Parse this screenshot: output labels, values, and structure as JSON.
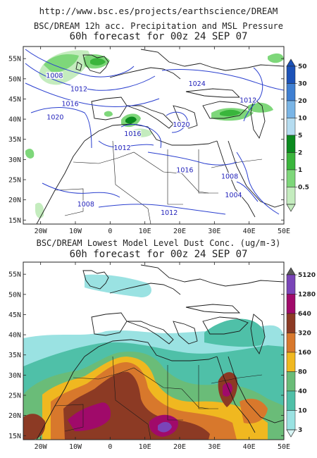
{
  "header": {
    "url": "http://www.bsc.es/projects/earthscience/DREAM",
    "title1_line1": "BSC/DREAM 12h acc. Precipitation and MSL Pressure",
    "title1_line2": "60h forecast for 00z 24 SEP 07",
    "title2_line1": "BSC/DREAM Lowest Model Level Dust Conc. (ug/m-3)",
    "title2_line2": "60h forecast for 00z 24 SEP 07"
  },
  "axes": {
    "lat_labels": [
      "55N",
      "50N",
      "45N",
      "40N",
      "35N",
      "30N",
      "25N",
      "20N",
      "15N"
    ],
    "lon_labels": [
      "20W",
      "10W",
      "0",
      "10E",
      "20E",
      "30E",
      "40E",
      "50E"
    ]
  },
  "precip_map": {
    "isobar_labels": [
      {
        "text": "1008",
        "lon": -16,
        "lat": 50.5
      },
      {
        "text": "1012",
        "lon": -9,
        "lat": 47.2
      },
      {
        "text": "1016",
        "lon": -11.5,
        "lat": 43.5
      },
      {
        "text": "1020",
        "lon": -15.8,
        "lat": 40.2
      },
      {
        "text": "1024",
        "lon": 25,
        "lat": 48.5
      },
      {
        "text": "1012",
        "lon": 39.7,
        "lat": 44.4
      },
      {
        "text": "1020",
        "lon": 20.5,
        "lat": 38.4
      },
      {
        "text": "1016",
        "lon": 6.5,
        "lat": 36.1
      },
      {
        "text": "1012",
        "lon": 3.5,
        "lat": 32.6
      },
      {
        "text": "1016",
        "lon": 21.5,
        "lat": 27.1
      },
      {
        "text": "1008",
        "lon": 34.4,
        "lat": 25.5
      },
      {
        "text": "1004",
        "lon": 35.5,
        "lat": 20.9
      },
      {
        "text": "1008",
        "lon": -7,
        "lat": 18.6
      },
      {
        "text": "1012",
        "lon": 17,
        "lat": 16.5
      }
    ],
    "colorbar": {
      "labels": [
        "50",
        "30",
        "20",
        "10",
        "5",
        "2",
        "1",
        "0.5"
      ],
      "colors": [
        "#1c52b8",
        "#3f7fd2",
        "#7ab5e6",
        "#b5dcf0",
        "#0a8a1e",
        "#3ab53c",
        "#7ed77a",
        "#c4ecbe"
      ]
    }
  },
  "dust_map": {
    "colorbar": {
      "labels": [
        "5120",
        "1280",
        "640",
        "320",
        "160",
        "80",
        "40",
        "10",
        "3"
      ],
      "colors": [
        "#5c5c5c",
        "#7a45b8",
        "#a00a6a",
        "#8c3a24",
        "#d8782c",
        "#f0b820",
        "#6abc78",
        "#4fc0a8",
        "#9ae2e2",
        "#d6f4f4"
      ]
    }
  }
}
